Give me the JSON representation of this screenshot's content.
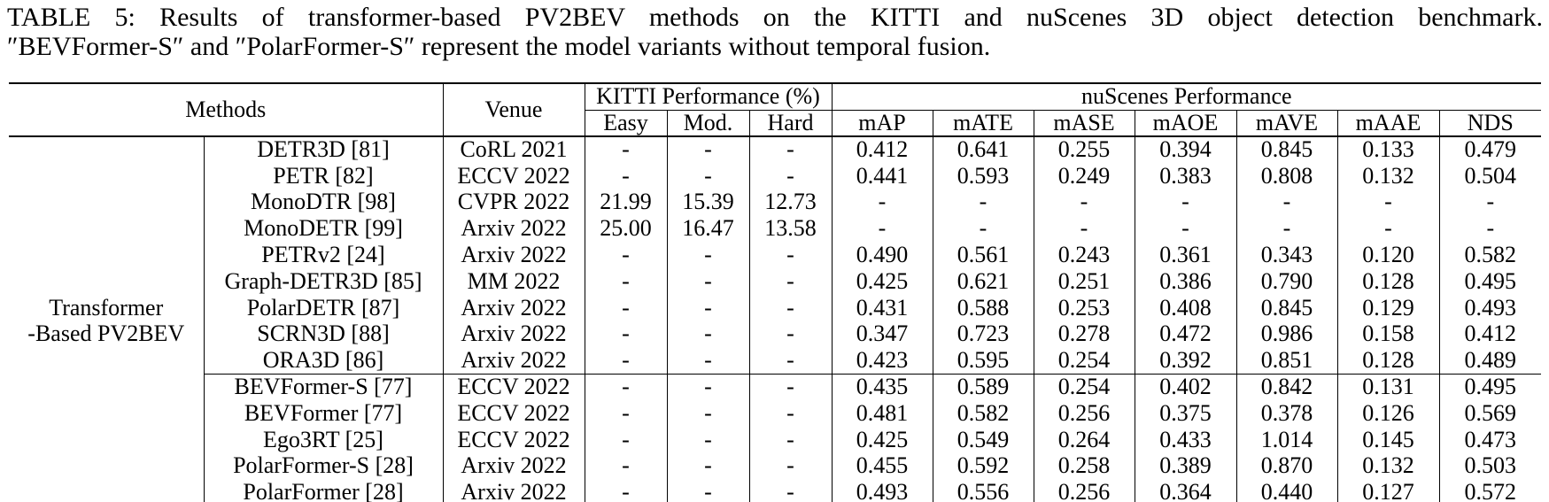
{
  "caption": {
    "line1": "TABLE 5: Results of transformer-based PV2BEV methods on the KITTI and nuScenes 3D object detection benchmark.",
    "line2": "″BEVFormer-S″ and ″PolarFormer-S″ represent the model variants without temporal fusion."
  },
  "table": {
    "header": {
      "methods": "Methods",
      "venue": "Venue",
      "kitti": "KITTI Performance (%)",
      "nuscenes": "nuScenes Performance"
    },
    "sub_header": {
      "kitti": [
        "Easy",
        "Mod.",
        "Hard"
      ],
      "nuscenes": [
        "mAP",
        "mATE",
        "mASE",
        "mAOE",
        "mAVE",
        "mAAE",
        "NDS"
      ]
    },
    "group_label_lines": [
      "Transformer",
      "-Based PV2BEV"
    ],
    "rows": [
      {
        "method": "DETR3D [81]",
        "venue": "CoRL 2021",
        "kitti": [
          "-",
          "-",
          "-"
        ],
        "nuscenes": [
          "0.412",
          "0.641",
          "0.255",
          "0.394",
          "0.845",
          "0.133",
          "0.479"
        ],
        "group_start": false
      },
      {
        "method": "PETR [82]",
        "venue": "ECCV 2022",
        "kitti": [
          "-",
          "-",
          "-"
        ],
        "nuscenes": [
          "0.441",
          "0.593",
          "0.249",
          "0.383",
          "0.808",
          "0.132",
          "0.504"
        ],
        "group_start": false
      },
      {
        "method": "MonoDTR [98]",
        "venue": "CVPR 2022",
        "kitti": [
          "21.99",
          "15.39",
          "12.73"
        ],
        "nuscenes": [
          "-",
          "-",
          "-",
          "-",
          "-",
          "-",
          "-"
        ],
        "group_start": false
      },
      {
        "method": "MonoDETR [99]",
        "venue": "Arxiv 2022",
        "kitti": [
          "25.00",
          "16.47",
          "13.58"
        ],
        "nuscenes": [
          "-",
          "-",
          "-",
          "-",
          "-",
          "-",
          "-"
        ],
        "group_start": false
      },
      {
        "method": "PETRv2 [24]",
        "venue": "Arxiv 2022",
        "kitti": [
          "-",
          "-",
          "-"
        ],
        "nuscenes": [
          "0.490",
          "0.561",
          "0.243",
          "0.361",
          "0.343",
          "0.120",
          "0.582"
        ],
        "group_start": false
      },
      {
        "method": "Graph-DETR3D [85]",
        "venue": "MM 2022",
        "kitti": [
          "-",
          "-",
          "-"
        ],
        "nuscenes": [
          "0.425",
          "0.621",
          "0.251",
          "0.386",
          "0.790",
          "0.128",
          "0.495"
        ],
        "group_start": false
      },
      {
        "method": "PolarDETR [87]",
        "venue": "Arxiv 2022",
        "kitti": [
          "-",
          "-",
          "-"
        ],
        "nuscenes": [
          "0.431",
          "0.588",
          "0.253",
          "0.408",
          "0.845",
          "0.129",
          "0.493"
        ],
        "group_start": false
      },
      {
        "method": "SCRN3D [88]",
        "venue": "Arxiv 2022",
        "kitti": [
          "-",
          "-",
          "-"
        ],
        "nuscenes": [
          "0.347",
          "0.723",
          "0.278",
          "0.472",
          "0.986",
          "0.158",
          "0.412"
        ],
        "group_start": false
      },
      {
        "method": "ORA3D [86]",
        "venue": "Arxiv 2022",
        "kitti": [
          "-",
          "-",
          "-"
        ],
        "nuscenes": [
          "0.423",
          "0.595",
          "0.254",
          "0.392",
          "0.851",
          "0.128",
          "0.489"
        ],
        "group_start": false
      },
      {
        "method": "BEVFormer-S [77]",
        "venue": "ECCV 2022",
        "kitti": [
          "-",
          "-",
          "-"
        ],
        "nuscenes": [
          "0.435",
          "0.589",
          "0.254",
          "0.402",
          "0.842",
          "0.131",
          "0.495"
        ],
        "group_start": true
      },
      {
        "method": "BEVFormer [77]",
        "venue": "ECCV 2022",
        "kitti": [
          "-",
          "-",
          "-"
        ],
        "nuscenes": [
          "0.481",
          "0.582",
          "0.256",
          "0.375",
          "0.378",
          "0.126",
          "0.569"
        ],
        "group_start": false
      },
      {
        "method": "Ego3RT [25]",
        "venue": "ECCV 2022",
        "kitti": [
          "-",
          "-",
          "-"
        ],
        "nuscenes": [
          "0.425",
          "0.549",
          "0.264",
          "0.433",
          "1.014",
          "0.145",
          "0.473"
        ],
        "group_start": false
      },
      {
        "method": "PolarFormer-S [28]",
        "venue": "Arxiv 2022",
        "kitti": [
          "-",
          "-",
          "-"
        ],
        "nuscenes": [
          "0.455",
          "0.592",
          "0.258",
          "0.389",
          "0.870",
          "0.132",
          "0.503"
        ],
        "group_start": false
      },
      {
        "method": "PolarFormer [28]",
        "venue": "Arxiv 2022",
        "kitti": [
          "-",
          "-",
          "-"
        ],
        "nuscenes": [
          "0.493",
          "0.556",
          "0.256",
          "0.364",
          "0.440",
          "0.127",
          "0.572"
        ],
        "group_start": false
      }
    ]
  }
}
